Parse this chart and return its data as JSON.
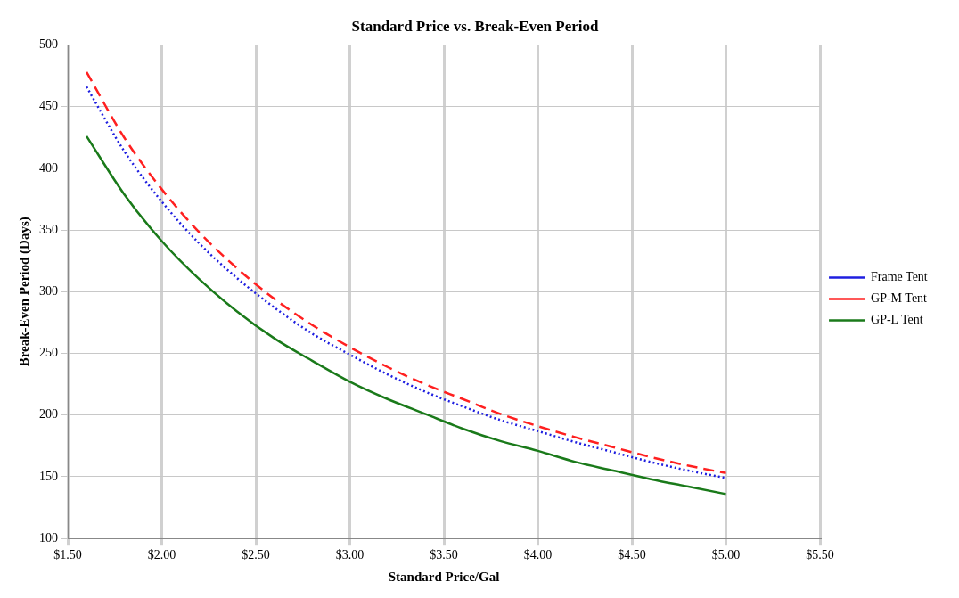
{
  "chart_data": {
    "type": "line",
    "title": "Standard Price vs. Break-Even Period",
    "xlabel": "Standard Price/Gal",
    "ylabel": "Break-Even Period (Days)",
    "x": [
      1.6,
      1.8,
      2.0,
      2.2,
      2.4,
      2.6,
      2.8,
      3.0,
      3.2,
      3.4,
      3.6,
      3.8,
      4.0,
      4.2,
      4.4,
      4.6,
      4.8,
      5.0
    ],
    "series": [
      {
        "name": "Frame Tent",
        "color": "#1f1fe0",
        "line_style": "dotted",
        "values": [
          466,
          414,
          373,
          339,
          311,
          287,
          266,
          249,
          233,
          219,
          207,
          196,
          187,
          178,
          170,
          162,
          155,
          149
        ]
      },
      {
        "name": "GP-M Tent",
        "color": "#ff2020",
        "line_style": "dashed",
        "values": [
          478,
          425,
          383,
          348,
          319,
          294,
          273,
          255,
          239,
          225,
          213,
          201,
          191,
          182,
          174,
          166,
          159,
          153
        ]
      },
      {
        "name": "GP-L Tent",
        "color": "#1a7a1a",
        "line_style": "solid",
        "values": [
          426,
          379,
          341,
          310,
          284,
          262,
          244,
          227,
          213,
          201,
          189,
          179,
          171,
          162,
          155,
          148,
          142,
          136
        ]
      }
    ],
    "xlim": [
      1.5,
      5.5
    ],
    "xticks": [
      {
        "value": 1.5,
        "label": "$1.50"
      },
      {
        "value": 2,
        "label": "$2.00"
      },
      {
        "value": 2.5,
        "label": "$2.50"
      },
      {
        "value": 3,
        "label": "$3.00"
      },
      {
        "value": 3.5,
        "label": "$3.50"
      },
      {
        "value": 4,
        "label": "$4.00"
      },
      {
        "value": 4.5,
        "label": "$4.50"
      },
      {
        "value": 5,
        "label": "$5.00"
      },
      {
        "value": 5.5,
        "label": "$5.50"
      }
    ],
    "ylim": [
      100,
      500
    ],
    "yticks": [
      100,
      150,
      200,
      250,
      300,
      350,
      400,
      450,
      500
    ],
    "grid": true,
    "legend": "right",
    "marker": "none"
  }
}
